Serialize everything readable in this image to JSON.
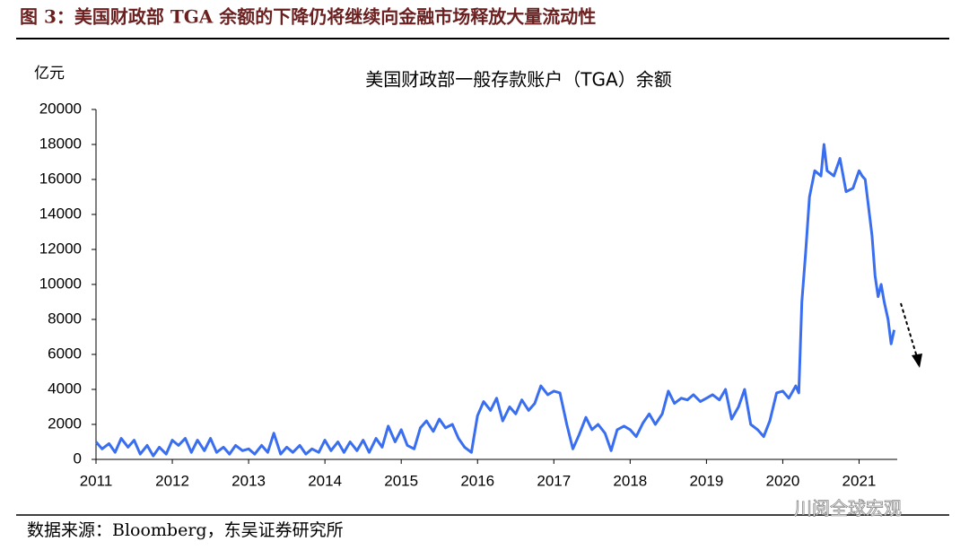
{
  "header": {
    "title": "图 3：美国财政部 TGA 余额的下降仍将继续向金融市场释放大量流动性"
  },
  "chart_data": {
    "type": "line",
    "title": "美国财政部一般存款账户（TGA）余额",
    "ylabel": "亿元",
    "x": [
      2011.0,
      2011.08,
      2011.17,
      2011.25,
      2011.33,
      2011.42,
      2011.5,
      2011.58,
      2011.67,
      2011.75,
      2011.83,
      2011.92,
      2012.0,
      2012.08,
      2012.17,
      2012.25,
      2012.33,
      2012.42,
      2012.5,
      2012.58,
      2012.67,
      2012.75,
      2012.83,
      2012.92,
      2013.0,
      2013.08,
      2013.17,
      2013.25,
      2013.33,
      2013.42,
      2013.5,
      2013.58,
      2013.67,
      2013.75,
      2013.83,
      2013.92,
      2014.0,
      2014.08,
      2014.17,
      2014.25,
      2014.33,
      2014.42,
      2014.5,
      2014.58,
      2014.67,
      2014.75,
      2014.83,
      2014.92,
      2015.0,
      2015.08,
      2015.17,
      2015.25,
      2015.33,
      2015.42,
      2015.5,
      2015.58,
      2015.67,
      2015.75,
      2015.83,
      2015.92,
      2016.0,
      2016.08,
      2016.17,
      2016.25,
      2016.33,
      2016.42,
      2016.5,
      2016.58,
      2016.67,
      2016.75,
      2016.83,
      2016.92,
      2017.0,
      2017.08,
      2017.17,
      2017.25,
      2017.33,
      2017.42,
      2017.5,
      2017.58,
      2017.67,
      2017.75,
      2017.83,
      2017.92,
      2018.0,
      2018.08,
      2018.17,
      2018.25,
      2018.33,
      2018.42,
      2018.5,
      2018.58,
      2018.67,
      2018.75,
      2018.83,
      2018.92,
      2019.0,
      2019.08,
      2019.17,
      2019.25,
      2019.33,
      2019.42,
      2019.5,
      2019.58,
      2019.67,
      2019.75,
      2019.83,
      2019.92,
      2020.0,
      2020.08,
      2020.17,
      2020.21,
      2020.25,
      2020.3,
      2020.35,
      2020.42,
      2020.5,
      2020.54,
      2020.58,
      2020.67,
      2020.75,
      2020.83,
      2020.92,
      2021.0,
      2021.04,
      2021.08,
      2021.17,
      2021.21,
      2021.25,
      2021.29,
      2021.33,
      2021.38,
      2021.42,
      2021.46
    ],
    "series": [
      {
        "name": "TGA余额",
        "color": "#3a6ef0",
        "values": [
          1000,
          600,
          900,
          400,
          1200,
          700,
          1100,
          300,
          800,
          200,
          700,
          300,
          1100,
          800,
          1200,
          400,
          1100,
          500,
          1200,
          400,
          700,
          300,
          800,
          500,
          600,
          300,
          800,
          400,
          1500,
          300,
          700,
          400,
          800,
          300,
          600,
          400,
          1100,
          500,
          1000,
          400,
          1000,
          500,
          1100,
          400,
          1200,
          700,
          1900,
          1000,
          1700,
          800,
          600,
          1800,
          2200,
          1600,
          2300,
          1800,
          2000,
          1200,
          700,
          400,
          2500,
          3300,
          2800,
          3500,
          2200,
          3000,
          2600,
          3400,
          2800,
          3200,
          4200,
          3700,
          3900,
          3800,
          2000,
          600,
          1400,
          2400,
          1700,
          2000,
          1500,
          500,
          1700,
          1900,
          1700,
          1300,
          2100,
          2600,
          2000,
          2600,
          3900,
          3200,
          3500,
          3400,
          3700,
          3300,
          3500,
          3700,
          3400,
          4000,
          2300,
          3000,
          4000,
          2000,
          1700,
          1300,
          2200,
          3800,
          3900,
          3500,
          4200,
          3800,
          9000,
          11800,
          15000,
          16500,
          16200,
          18000,
          16500,
          16200,
          17200,
          15300,
          15500,
          16500,
          16200,
          16000,
          12800,
          10500,
          9300,
          10000,
          9000,
          8000,
          6600,
          7400
        ]
      }
    ],
    "xlim": [
      2011,
      2021.5
    ],
    "xticks": [
      2011,
      2012,
      2013,
      2014,
      2015,
      2016,
      2017,
      2018,
      2019,
      2020,
      2021
    ],
    "ylim": [
      0,
      20000
    ],
    "yticks": [
      0,
      2000,
      4000,
      6000,
      8000,
      10000,
      12000,
      14000,
      16000,
      18000,
      20000
    ],
    "grid": false
  },
  "footer": {
    "source": "数据来源：Bloomberg，东吴证券研究所",
    "watermark": "川阅全球宏观"
  }
}
